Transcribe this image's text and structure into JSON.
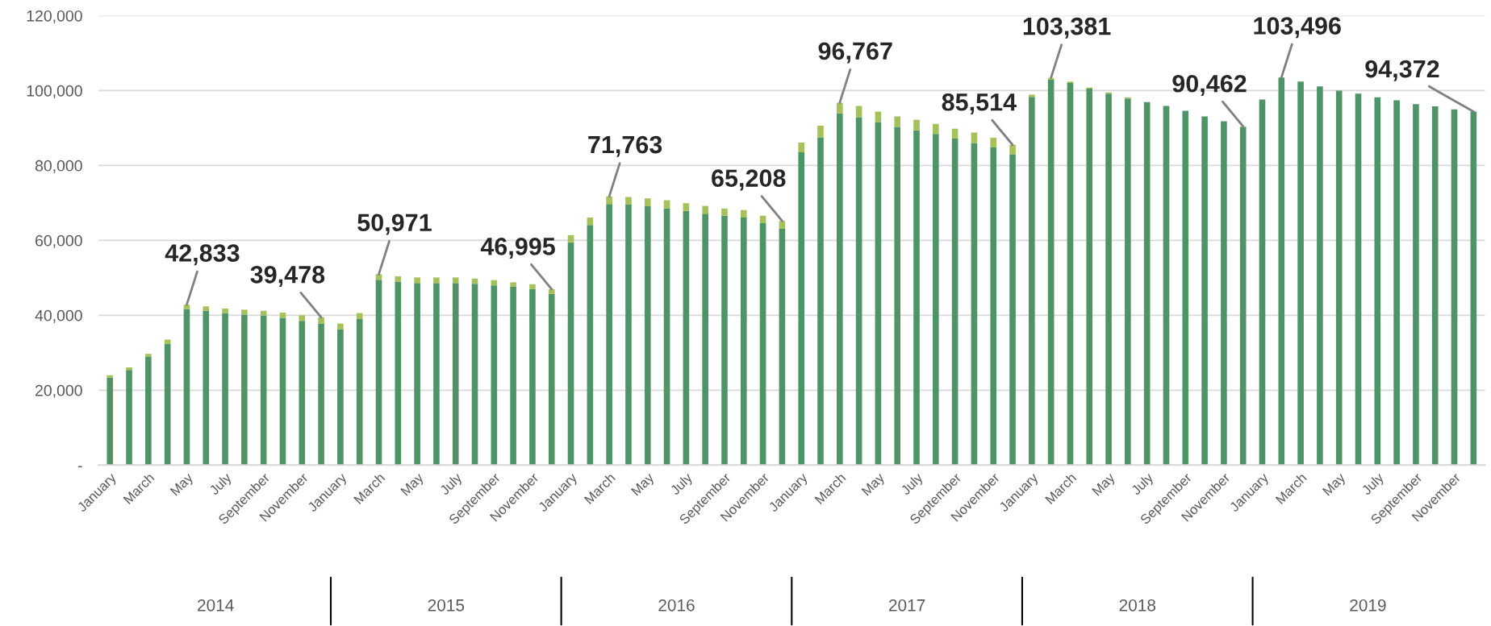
{
  "chart_data": {
    "type": "bar",
    "stacked": true,
    "grid": "y",
    "categories": [
      "January",
      null,
      "March",
      null,
      "May",
      null,
      "July",
      null,
      "September",
      null,
      "November",
      null,
      "January",
      null,
      "March",
      null,
      "May",
      null,
      "July",
      null,
      "September",
      null,
      "November",
      null,
      "January",
      null,
      "March",
      null,
      "May",
      null,
      "July",
      null,
      "September",
      null,
      "November",
      null,
      "January",
      null,
      "March",
      null,
      "May",
      null,
      "July",
      null,
      "September",
      null,
      "November",
      null,
      "January",
      null,
      "March",
      null,
      "May",
      null,
      "July",
      null,
      "September",
      null,
      "November",
      null,
      "January",
      null,
      "March",
      null,
      "May",
      null,
      "July",
      null,
      "September",
      null,
      "November",
      null
    ],
    "series": [
      {
        "color": "#4e9467",
        "values": [
          23400,
          25400,
          28900,
          32400,
          41700,
          41200,
          40600,
          40200,
          39900,
          39300,
          38500,
          37800,
          36300,
          39100,
          49500,
          49000,
          48600,
          48600,
          48600,
          48400,
          48000,
          47700,
          47000,
          45700,
          59500,
          64100,
          69700,
          69600,
          69100,
          68600,
          67900,
          67100,
          66600,
          66100,
          64600,
          63100,
          83500,
          87500,
          93900,
          92900,
          91600,
          90300,
          89400,
          88400,
          87200,
          86000,
          84800,
          83000,
          98300,
          102900,
          102000,
          100500,
          99200,
          97900,
          96900,
          95900,
          94600,
          93100,
          91800,
          90300,
          97600,
          103496,
          102400,
          101100,
          100000,
          99200,
          98200,
          97400,
          96400,
          95800,
          95000,
          94372
        ]
      },
      {
        "color": "#a5c25a",
        "values": [
          600,
          700,
          800,
          1100,
          1133,
          1200,
          1200,
          1300,
          1300,
          1400,
          1500,
          1678,
          1500,
          1500,
          1471,
          1400,
          1500,
          1500,
          1500,
          1400,
          1400,
          1100,
          1300,
          1295,
          1900,
          2000,
          2063,
          2000,
          2100,
          2100,
          2000,
          2100,
          1900,
          2000,
          2000,
          2108,
          2600,
          3100,
          2867,
          3000,
          2800,
          2800,
          2800,
          2700,
          2600,
          2800,
          2600,
          2514,
          600,
          481,
          400,
          300,
          300,
          300,
          null,
          null,
          null,
          null,
          null,
          162,
          0,
          0,
          0,
          0,
          0,
          0,
          0,
          0,
          0,
          0,
          0,
          0
        ]
      }
    ],
    "totals": [
      null,
      null,
      null,
      null,
      "42,833",
      null,
      null,
      null,
      null,
      null,
      null,
      "39,478",
      null,
      null,
      "50,971",
      null,
      null,
      null,
      null,
      null,
      null,
      null,
      null,
      "46,995",
      null,
      null,
      "71,763",
      null,
      null,
      null,
      null,
      null,
      null,
      null,
      null,
      "65,208",
      null,
      null,
      "96,767",
      null,
      null,
      null,
      null,
      null,
      null,
      null,
      null,
      "85,514",
      null,
      "103,381",
      null,
      null,
      null,
      null,
      null,
      null,
      null,
      null,
      null,
      "90,462",
      null,
      "103,496",
      null,
      null,
      null,
      null,
      null,
      null,
      null,
      null,
      null,
      "94,372"
    ],
    "ylim": [
      0,
      120000
    ],
    "yticks": [
      {
        "value": 0,
        "label": "-"
      },
      {
        "value": 20000,
        "label": "20,000"
      },
      {
        "value": 40000,
        "label": "40,000"
      },
      {
        "value": 60000,
        "label": "60,000"
      },
      {
        "value": 80000,
        "label": "80,000"
      },
      {
        "value": 100000,
        "label": "100,000"
      },
      {
        "value": 120000,
        "label": "120,000"
      }
    ],
    "annotations": [
      "2014",
      "2015",
      "2016",
      "2017",
      "2018",
      "2019"
    ]
  }
}
